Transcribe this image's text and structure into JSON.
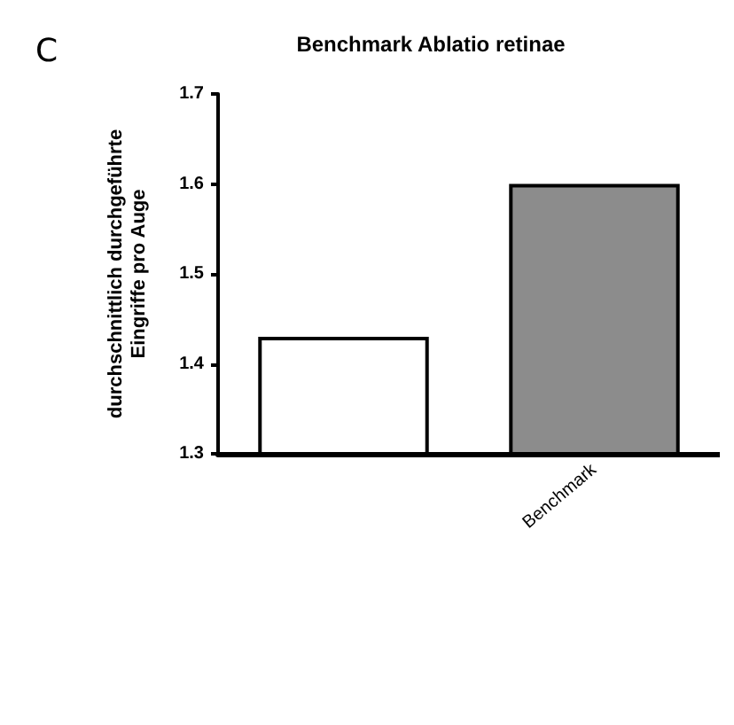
{
  "chart_data": {
    "type": "bar",
    "title": "Benchmark Ablatio retinae",
    "ylabel": "durchschnittlich durchgeführte\nEingriffe pro Auge",
    "annotations": [
      "C"
    ],
    "categories": [
      null,
      "Benchmark"
    ],
    "values": [
      1.43,
      1.6
    ],
    "colors": [
      "#ffffff",
      "#8c8c8c"
    ],
    "ylim": [
      1.3,
      1.7
    ],
    "yticks": [
      1.3,
      1.4,
      1.5,
      1.6,
      1.7
    ],
    "grid": false
  }
}
